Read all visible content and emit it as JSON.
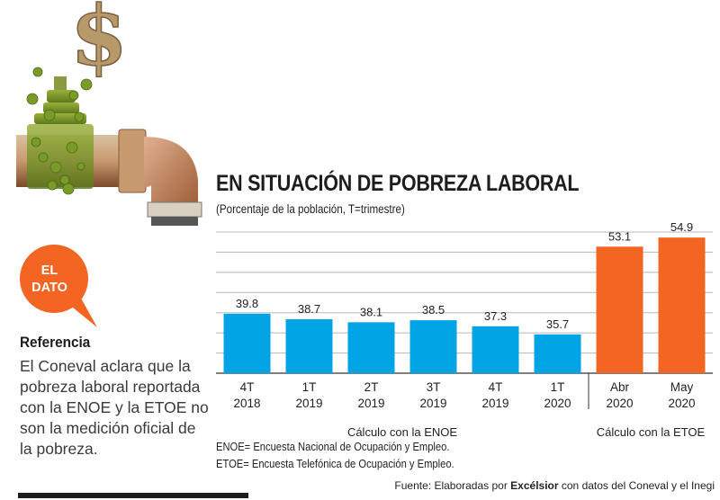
{
  "chart_data": {
    "type": "bar",
    "title": "EN SITUACIÓN DE POBREZA LABORAL",
    "subtitle": "(Porcentaje de la población, T=trimestre)",
    "xlabel": "",
    "ylabel": "",
    "ylim": [
      28,
      56
    ],
    "grid": true,
    "categories": [
      [
        "4T",
        "2018"
      ],
      [
        "1T",
        "2019"
      ],
      [
        "2T",
        "2019"
      ],
      [
        "3T",
        "2019"
      ],
      [
        "4T",
        "2019"
      ],
      [
        "1T",
        "2020"
      ],
      [
        "Abr",
        "2020"
      ],
      [
        "May",
        "2020"
      ]
    ],
    "values": [
      39.8,
      38.7,
      38.1,
      38.5,
      37.3,
      35.7,
      53.1,
      54.9
    ],
    "value_labels": [
      "39.8",
      "38.7",
      "38.1",
      "38.5",
      "37.3",
      "35.7",
      "53.1",
      "54.9"
    ],
    "groups": [
      {
        "label": "Cálculo con la ENOE",
        "indices": [
          0,
          1,
          2,
          3,
          4,
          5
        ],
        "color": "#00a3e4"
      },
      {
        "label": "Cálculo con la ETOE",
        "indices": [
          6,
          7
        ],
        "color": "#f26522"
      }
    ]
  },
  "footnotes": [
    "ENOE= Encuesta Nacional de Ocupación y Empleo.",
    "ETOE= Encuesta Telefónica de Ocupación y Empleo."
  ],
  "source": {
    "prefix": "Fuente: Elaboradas por ",
    "brand": "Excélsior",
    "suffix": " con datos del Coneval y el Inegi"
  },
  "sidebar": {
    "badge_line1": "EL",
    "badge_line2": "DATO",
    "badge_color": "#f26522",
    "heading": "Referencia",
    "body": "El Coneval aclara que la pobreza laboral reportada con la ENOE y la ETOE no son la medición oficial de la pobreza."
  },
  "illustration": "rusty-faucet-dollar-sign"
}
